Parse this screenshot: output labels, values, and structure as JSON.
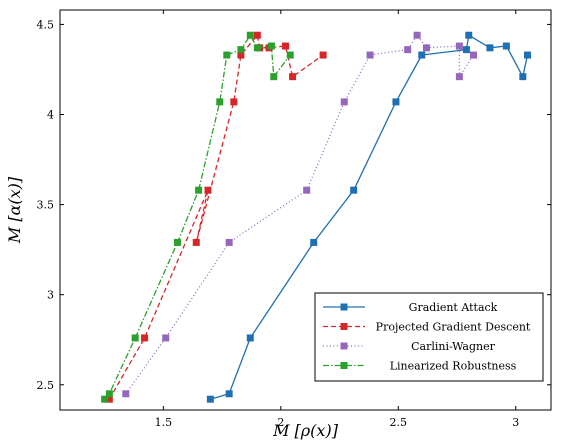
{
  "chart_data": {
    "type": "line",
    "xlabel": "M [ρ(x)]",
    "ylabel": "M [α(x)]",
    "xlim": [
      1.06,
      3.15
    ],
    "ylim": [
      2.36,
      4.58
    ],
    "xticks": [
      {
        "value": 1.5,
        "label": "1.5"
      },
      {
        "value": 2.0,
        "label": "2"
      },
      {
        "value": 2.5,
        "label": "2.5"
      },
      {
        "value": 3.0,
        "label": "3"
      }
    ],
    "yticks": [
      {
        "value": 2.5,
        "label": "2.5"
      },
      {
        "value": 3.0,
        "label": "3"
      },
      {
        "value": 3.5,
        "label": "3.5"
      },
      {
        "value": 4.0,
        "label": "4"
      },
      {
        "value": 4.5,
        "label": "4.5"
      }
    ],
    "legend_position": "bottom-right",
    "series": [
      {
        "name": "Gradient Attack",
        "color": "#1f6fb4",
        "dash": "solid",
        "x": [
          1.7,
          1.78,
          1.87,
          2.14,
          2.31,
          2.49,
          2.6,
          2.79,
          2.8,
          2.89,
          2.96,
          3.03,
          3.05
        ],
        "y": [
          2.42,
          2.45,
          2.76,
          3.29,
          3.58,
          4.07,
          4.33,
          4.36,
          4.44,
          4.37,
          4.38,
          4.21,
          4.33
        ]
      },
      {
        "name": "Projected Gradient Descent",
        "color": "#d62728",
        "dash": "dashed",
        "x": [
          1.27,
          1.42,
          1.69,
          1.64,
          1.8,
          1.83,
          1.9,
          1.91,
          1.95,
          2.02,
          2.05,
          2.18
        ],
        "y": [
          2.42,
          2.76,
          3.58,
          3.29,
          4.07,
          4.33,
          4.44,
          4.37,
          4.37,
          4.38,
          4.21,
          4.33
        ]
      },
      {
        "name": "Carlini-Wagner",
        "color": "#9467bd",
        "dash": "dotted",
        "x": [
          1.34,
          1.51,
          1.78,
          2.11,
          2.27,
          2.38,
          2.54,
          2.58,
          2.62,
          2.76,
          2.76,
          2.82
        ],
        "y": [
          2.45,
          2.76,
          3.29,
          3.58,
          4.07,
          4.33,
          4.36,
          4.44,
          4.37,
          4.38,
          4.21,
          4.33
        ]
      },
      {
        "name": "Linearized Robustness",
        "color": "#2ca02c",
        "dash": "dashdot",
        "x": [
          1.25,
          1.27,
          1.38,
          1.56,
          1.65,
          1.74,
          1.77,
          1.83,
          1.87,
          1.9,
          1.96,
          1.97,
          2.04
        ],
        "y": [
          2.42,
          2.45,
          2.76,
          3.29,
          3.58,
          4.07,
          4.33,
          4.36,
          4.44,
          4.37,
          4.38,
          4.21,
          4.33
        ]
      }
    ]
  }
}
